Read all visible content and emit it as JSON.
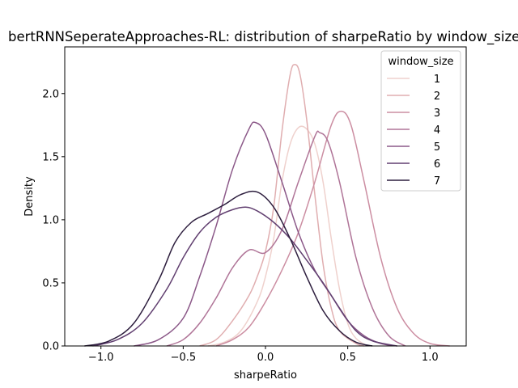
{
  "chart_data": {
    "type": "line",
    "title": "bertRNNSeperateApproaches-RL: distribution of sharpeRatio by window_size",
    "xlabel": "sharpeRatio",
    "ylabel": "Density",
    "xlim": [
      -1.22,
      1.22
    ],
    "ylim": [
      0,
      2.37
    ],
    "xticks": [
      -1.0,
      -0.5,
      0.0,
      0.5,
      1.0
    ],
    "xtick_labels": [
      "−1.0",
      "−0.5",
      "0.0",
      "0.5",
      "1.0"
    ],
    "yticks": [
      0.0,
      0.5,
      1.0,
      1.5,
      2.0
    ],
    "ytick_labels": [
      "0.0",
      "0.5",
      "1.0",
      "1.5",
      "2.0"
    ],
    "grid": false,
    "legend": {
      "title": "window_size",
      "position": "top-right"
    },
    "series": [
      {
        "name": "1",
        "color": "#efd1cd",
        "points": [
          [
            -0.35,
            0.0
          ],
          [
            -0.25,
            0.03
          ],
          [
            -0.15,
            0.12
          ],
          [
            -0.05,
            0.35
          ],
          [
            0.0,
            0.55
          ],
          [
            0.05,
            0.85
          ],
          [
            0.1,
            1.3
          ],
          [
            0.15,
            1.6
          ],
          [
            0.2,
            1.73
          ],
          [
            0.25,
            1.72
          ],
          [
            0.3,
            1.6
          ],
          [
            0.35,
            1.3
          ],
          [
            0.4,
            0.85
          ],
          [
            0.45,
            0.45
          ],
          [
            0.5,
            0.18
          ],
          [
            0.55,
            0.06
          ],
          [
            0.62,
            0.0
          ]
        ]
      },
      {
        "name": "2",
        "color": "#e0aeb0",
        "points": [
          [
            -0.4,
            0.0
          ],
          [
            -0.3,
            0.05
          ],
          [
            -0.2,
            0.2
          ],
          [
            -0.1,
            0.4
          ],
          [
            -0.05,
            0.55
          ],
          [
            0.0,
            0.75
          ],
          [
            0.05,
            1.1
          ],
          [
            0.1,
            1.7
          ],
          [
            0.15,
            2.15
          ],
          [
            0.18,
            2.23
          ],
          [
            0.21,
            2.15
          ],
          [
            0.25,
            1.8
          ],
          [
            0.3,
            1.2
          ],
          [
            0.35,
            0.65
          ],
          [
            0.4,
            0.3
          ],
          [
            0.45,
            0.12
          ],
          [
            0.55,
            0.02
          ],
          [
            0.6,
            0.0
          ]
        ]
      },
      {
        "name": "3",
        "color": "#cc8ea2",
        "points": [
          [
            -0.3,
            0.0
          ],
          [
            -0.2,
            0.05
          ],
          [
            -0.1,
            0.15
          ],
          [
            0.0,
            0.35
          ],
          [
            0.1,
            0.6
          ],
          [
            0.2,
            0.9
          ],
          [
            0.3,
            1.3
          ],
          [
            0.4,
            1.75
          ],
          [
            0.46,
            1.86
          ],
          [
            0.52,
            1.75
          ],
          [
            0.6,
            1.3
          ],
          [
            0.7,
            0.7
          ],
          [
            0.8,
            0.3
          ],
          [
            0.9,
            0.1
          ],
          [
            1.0,
            0.02
          ],
          [
            1.12,
            0.0
          ]
        ]
      },
      {
        "name": "4",
        "color": "#b07598",
        "points": [
          [
            -0.6,
            0.0
          ],
          [
            -0.5,
            0.05
          ],
          [
            -0.4,
            0.18
          ],
          [
            -0.3,
            0.38
          ],
          [
            -0.2,
            0.62
          ],
          [
            -0.1,
            0.76
          ],
          [
            0.0,
            0.74
          ],
          [
            0.1,
            0.92
          ],
          [
            0.2,
            1.3
          ],
          [
            0.3,
            1.66
          ],
          [
            0.33,
            1.69
          ],
          [
            0.38,
            1.62
          ],
          [
            0.45,
            1.3
          ],
          [
            0.55,
            0.7
          ],
          [
            0.65,
            0.3
          ],
          [
            0.75,
            0.08
          ],
          [
            0.85,
            0.0
          ]
        ]
      },
      {
        "name": "5",
        "color": "#8b5888",
        "points": [
          [
            -0.8,
            0.0
          ],
          [
            -0.65,
            0.05
          ],
          [
            -0.5,
            0.22
          ],
          [
            -0.4,
            0.55
          ],
          [
            -0.3,
            0.95
          ],
          [
            -0.2,
            1.4
          ],
          [
            -0.1,
            1.72
          ],
          [
            -0.06,
            1.77
          ],
          [
            0.0,
            1.68
          ],
          [
            0.1,
            1.3
          ],
          [
            0.2,
            0.9
          ],
          [
            0.3,
            0.6
          ],
          [
            0.4,
            0.4
          ],
          [
            0.5,
            0.2
          ],
          [
            0.6,
            0.08
          ],
          [
            0.7,
            0.02
          ],
          [
            0.8,
            0.0
          ]
        ]
      },
      {
        "name": "6",
        "color": "#613f70",
        "points": [
          [
            -1.05,
            0.0
          ],
          [
            -0.9,
            0.05
          ],
          [
            -0.75,
            0.18
          ],
          [
            -0.6,
            0.45
          ],
          [
            -0.5,
            0.7
          ],
          [
            -0.4,
            0.9
          ],
          [
            -0.3,
            1.02
          ],
          [
            -0.2,
            1.08
          ],
          [
            -0.12,
            1.1
          ],
          [
            -0.05,
            1.07
          ],
          [
            0.05,
            0.98
          ],
          [
            0.15,
            0.85
          ],
          [
            0.25,
            0.68
          ],
          [
            0.35,
            0.5
          ],
          [
            0.45,
            0.3
          ],
          [
            0.55,
            0.12
          ],
          [
            0.65,
            0.04
          ],
          [
            0.8,
            0.0
          ]
        ]
      },
      {
        "name": "7",
        "color": "#2d1e3e",
        "points": [
          [
            -1.1,
            0.0
          ],
          [
            -0.95,
            0.04
          ],
          [
            -0.8,
            0.18
          ],
          [
            -0.65,
            0.52
          ],
          [
            -0.55,
            0.82
          ],
          [
            -0.45,
            0.98
          ],
          [
            -0.35,
            1.05
          ],
          [
            -0.25,
            1.12
          ],
          [
            -0.15,
            1.2
          ],
          [
            -0.05,
            1.22
          ],
          [
            0.05,
            1.1
          ],
          [
            0.15,
            0.85
          ],
          [
            0.25,
            0.55
          ],
          [
            0.35,
            0.28
          ],
          [
            0.45,
            0.12
          ],
          [
            0.55,
            0.03
          ],
          [
            0.65,
            0.0
          ]
        ]
      }
    ]
  }
}
